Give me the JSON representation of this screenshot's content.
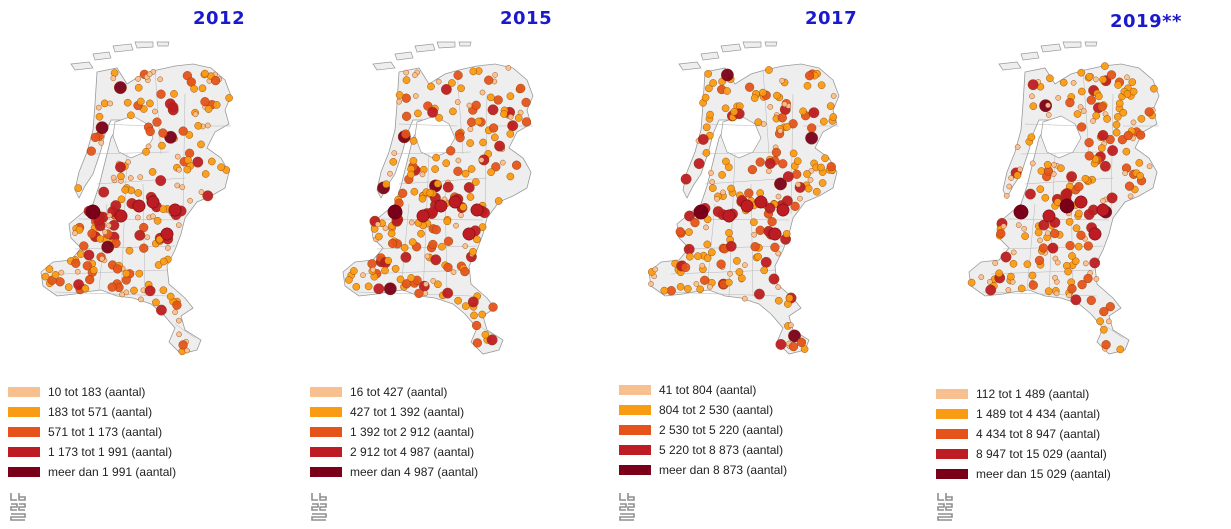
{
  "colors": {
    "land": "#eeeeee",
    "border": "#9a9a9a",
    "class_colors": [
      "#f9c08f",
      "#f99b13",
      "#e5531a",
      "#bd1c22",
      "#7a0019"
    ]
  },
  "panels": [
    {
      "year": "2012",
      "legend": [
        "10 tot 183 (aantal)",
        "183 tot 571 (aantal)",
        "571 tot 1 173 (aantal)",
        "1 173 tot 1 991 (aantal)",
        "meer dan 1 991 (aantal)"
      ],
      "class_shares": [
        0.3,
        0.43,
        0.17,
        0.08,
        0.02
      ]
    },
    {
      "year": "2015",
      "legend": [
        "16 tot 427 (aantal)",
        "427 tot 1 392 (aantal)",
        "1 392 tot 2 912 (aantal)",
        "2 912 tot 4 987 (aantal)",
        "meer dan 4 987 (aantal)"
      ],
      "class_shares": [
        0.24,
        0.47,
        0.18,
        0.09,
        0.02
      ]
    },
    {
      "year": "2017",
      "legend": [
        "41 tot 804 (aantal)",
        "804 tot 2 530 (aantal)",
        "2 530 tot 5 220 (aantal)",
        "5 220 tot 8 873 (aantal)",
        "meer dan 8 873 (aantal)"
      ],
      "class_shares": [
        0.23,
        0.48,
        0.18,
        0.09,
        0.02
      ]
    },
    {
      "year": "2019**",
      "legend": [
        "112 tot 1 489 (aantal)",
        "1 489 tot 4 434 (aantal)",
        "4 434 tot 8 947 (aantal)",
        "8 947 tot 15 029 (aantal)",
        "meer dan 15 029 (aantal)"
      ],
      "class_shares": [
        0.25,
        0.44,
        0.19,
        0.1,
        0.02
      ]
    }
  ]
}
